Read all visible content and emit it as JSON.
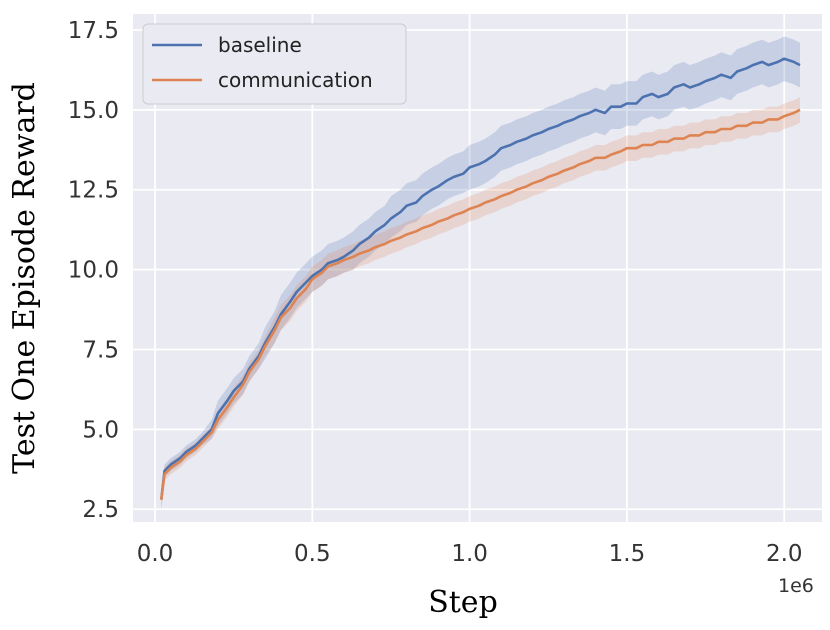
{
  "chart_data": {
    "type": "line",
    "title": "",
    "xlabel": "Step",
    "ylabel": "Test One Episode Reward",
    "x_offset_label": "1e6",
    "xlim": [
      -0.07,
      2.12
    ],
    "ylim": [
      2.1,
      18.0
    ],
    "xticks": [
      0.0,
      0.5,
      1.0,
      1.5,
      2.0
    ],
    "xtick_labels": [
      "0.0",
      "0.5",
      "1.0",
      "1.5",
      "2.0"
    ],
    "yticks": [
      2.5,
      5.0,
      7.5,
      10.0,
      12.5,
      15.0,
      17.5
    ],
    "ytick_labels": [
      "2.5",
      "5.0",
      "7.5",
      "10.0",
      "12.5",
      "15.0",
      "17.5"
    ],
    "grid": true,
    "background": "#eaeaf2",
    "legend_position": "top-left",
    "x": [
      0.02,
      0.03,
      0.05,
      0.08,
      0.1,
      0.13,
      0.15,
      0.18,
      0.2,
      0.23,
      0.25,
      0.28,
      0.3,
      0.33,
      0.35,
      0.38,
      0.4,
      0.43,
      0.45,
      0.48,
      0.5,
      0.53,
      0.55,
      0.58,
      0.6,
      0.63,
      0.65,
      0.68,
      0.7,
      0.73,
      0.75,
      0.78,
      0.8,
      0.83,
      0.85,
      0.88,
      0.9,
      0.93,
      0.95,
      0.98,
      1.0,
      1.03,
      1.05,
      1.08,
      1.1,
      1.13,
      1.15,
      1.18,
      1.2,
      1.23,
      1.25,
      1.28,
      1.3,
      1.33,
      1.35,
      1.38,
      1.4,
      1.43,
      1.45,
      1.48,
      1.5,
      1.53,
      1.55,
      1.58,
      1.6,
      1.63,
      1.65,
      1.68,
      1.7,
      1.73,
      1.75,
      1.78,
      1.8,
      1.83,
      1.85,
      1.88,
      1.9,
      1.93,
      1.95,
      1.98,
      2.0,
      2.03,
      2.05
    ],
    "series": [
      {
        "name": "baseline",
        "color": "#4c72b0",
        "values": [
          2.8,
          3.7,
          3.9,
          4.1,
          4.3,
          4.5,
          4.7,
          5.0,
          5.5,
          5.9,
          6.2,
          6.5,
          6.9,
          7.3,
          7.7,
          8.2,
          8.6,
          9.0,
          9.3,
          9.6,
          9.8,
          10.0,
          10.2,
          10.3,
          10.4,
          10.6,
          10.8,
          11.0,
          11.2,
          11.4,
          11.6,
          11.8,
          12.0,
          12.1,
          12.3,
          12.5,
          12.6,
          12.8,
          12.9,
          13.0,
          13.2,
          13.3,
          13.4,
          13.6,
          13.8,
          13.9,
          14.0,
          14.1,
          14.2,
          14.3,
          14.4,
          14.5,
          14.6,
          14.7,
          14.8,
          14.9,
          15.0,
          14.9,
          15.1,
          15.1,
          15.2,
          15.2,
          15.4,
          15.5,
          15.4,
          15.5,
          15.7,
          15.8,
          15.7,
          15.8,
          15.9,
          16.0,
          16.1,
          16.0,
          16.2,
          16.3,
          16.4,
          16.5,
          16.4,
          16.5,
          16.6,
          16.5,
          16.4
        ],
        "lower": [
          2.5,
          3.5,
          3.7,
          3.9,
          4.1,
          4.3,
          4.5,
          4.7,
          5.1,
          5.5,
          5.8,
          6.1,
          6.5,
          6.9,
          7.2,
          7.7,
          8.1,
          8.5,
          8.8,
          9.1,
          9.3,
          9.5,
          9.7,
          9.8,
          9.9,
          10.0,
          10.2,
          10.4,
          10.6,
          10.8,
          11.0,
          11.2,
          11.4,
          11.5,
          11.7,
          11.9,
          12.0,
          12.2,
          12.3,
          12.4,
          12.5,
          12.6,
          12.7,
          12.9,
          13.1,
          13.2,
          13.3,
          13.4,
          13.5,
          13.6,
          13.7,
          13.8,
          13.9,
          14.0,
          14.1,
          14.2,
          14.3,
          14.2,
          14.4,
          14.4,
          14.5,
          14.5,
          14.7,
          14.8,
          14.7,
          14.8,
          15.0,
          15.1,
          15.0,
          15.1,
          15.2,
          15.3,
          15.4,
          15.3,
          15.5,
          15.6,
          15.7,
          15.8,
          15.7,
          15.8,
          15.9,
          15.8,
          15.7
        ],
        "upper": [
          3.1,
          3.9,
          4.1,
          4.3,
          4.5,
          4.7,
          4.9,
          5.3,
          5.9,
          6.3,
          6.6,
          6.9,
          7.3,
          7.7,
          8.2,
          8.7,
          9.2,
          9.6,
          9.9,
          10.2,
          10.4,
          10.6,
          10.8,
          10.9,
          11.0,
          11.2,
          11.4,
          11.6,
          11.8,
          12.0,
          12.3,
          12.5,
          12.7,
          12.8,
          13.0,
          13.2,
          13.3,
          13.5,
          13.6,
          13.7,
          13.9,
          14.0,
          14.1,
          14.3,
          14.5,
          14.6,
          14.7,
          14.8,
          14.9,
          15.0,
          15.1,
          15.2,
          15.3,
          15.4,
          15.5,
          15.6,
          15.7,
          15.6,
          15.8,
          15.8,
          15.9,
          15.9,
          16.1,
          16.2,
          16.1,
          16.2,
          16.4,
          16.5,
          16.4,
          16.5,
          16.6,
          16.7,
          16.8,
          16.7,
          16.9,
          17.0,
          17.1,
          17.2,
          17.1,
          17.2,
          17.3,
          17.2,
          17.1
        ]
      },
      {
        "name": "communication",
        "color": "#dd8452",
        "values": [
          2.8,
          3.6,
          3.8,
          4.0,
          4.2,
          4.4,
          4.6,
          4.9,
          5.3,
          5.7,
          6.0,
          6.4,
          6.8,
          7.2,
          7.6,
          8.1,
          8.5,
          8.8,
          9.1,
          9.4,
          9.7,
          9.9,
          10.1,
          10.2,
          10.3,
          10.4,
          10.5,
          10.6,
          10.7,
          10.8,
          10.9,
          11.0,
          11.1,
          11.2,
          11.3,
          11.4,
          11.5,
          11.6,
          11.7,
          11.8,
          11.9,
          12.0,
          12.1,
          12.2,
          12.3,
          12.4,
          12.5,
          12.6,
          12.7,
          12.8,
          12.9,
          13.0,
          13.1,
          13.2,
          13.3,
          13.4,
          13.5,
          13.5,
          13.6,
          13.7,
          13.8,
          13.8,
          13.9,
          13.9,
          14.0,
          14.0,
          14.1,
          14.1,
          14.2,
          14.2,
          14.3,
          14.3,
          14.4,
          14.4,
          14.5,
          14.5,
          14.6,
          14.6,
          14.7,
          14.7,
          14.8,
          14.9,
          15.0
        ],
        "lower": [
          2.5,
          3.4,
          3.6,
          3.8,
          4.0,
          4.2,
          4.4,
          4.7,
          5.0,
          5.4,
          5.7,
          6.1,
          6.5,
          6.9,
          7.3,
          7.7,
          8.1,
          8.4,
          8.7,
          9.0,
          9.3,
          9.5,
          9.7,
          9.8,
          9.9,
          10.0,
          10.1,
          10.2,
          10.3,
          10.4,
          10.5,
          10.6,
          10.7,
          10.8,
          10.9,
          11.0,
          11.1,
          11.2,
          11.3,
          11.4,
          11.5,
          11.6,
          11.7,
          11.8,
          11.9,
          12.0,
          12.1,
          12.2,
          12.3,
          12.4,
          12.5,
          12.6,
          12.7,
          12.8,
          12.9,
          13.0,
          13.1,
          13.1,
          13.2,
          13.3,
          13.4,
          13.4,
          13.5,
          13.5,
          13.6,
          13.6,
          13.7,
          13.7,
          13.8,
          13.8,
          13.9,
          13.9,
          14.0,
          14.0,
          14.1,
          14.1,
          14.2,
          14.2,
          14.3,
          14.3,
          14.4,
          14.5,
          14.6
        ],
        "upper": [
          3.1,
          3.8,
          4.0,
          4.2,
          4.4,
          4.6,
          4.8,
          5.1,
          5.6,
          6.0,
          6.3,
          6.7,
          7.1,
          7.5,
          7.9,
          8.5,
          8.9,
          9.2,
          9.5,
          9.8,
          10.1,
          10.3,
          10.5,
          10.6,
          10.7,
          10.8,
          10.9,
          11.0,
          11.1,
          11.2,
          11.3,
          11.4,
          11.5,
          11.6,
          11.7,
          11.8,
          11.9,
          12.0,
          12.1,
          12.2,
          12.3,
          12.4,
          12.5,
          12.6,
          12.7,
          12.8,
          12.9,
          13.0,
          13.1,
          13.2,
          13.3,
          13.4,
          13.5,
          13.6,
          13.7,
          13.8,
          13.9,
          13.9,
          14.0,
          14.1,
          14.2,
          14.2,
          14.3,
          14.3,
          14.4,
          14.4,
          14.5,
          14.5,
          14.6,
          14.6,
          14.7,
          14.7,
          14.8,
          14.8,
          14.9,
          14.9,
          15.0,
          15.0,
          15.1,
          15.1,
          15.2,
          15.3,
          15.4
        ]
      }
    ]
  }
}
